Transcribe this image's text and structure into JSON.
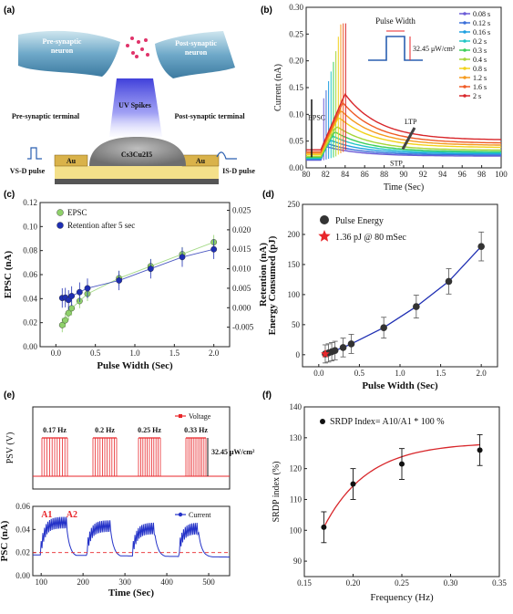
{
  "panels": {
    "a": {
      "label": "(a)",
      "pre_neuron": "Pre-synaptic neuron",
      "post_neuron": "Post-synaptic neuron",
      "uv": "UV Spikes",
      "pre_terminal": "Pre-synaptic terminal",
      "post_terminal": "Post-synaptic terminal",
      "au_left": "Au",
      "au_right": "Au",
      "material": "Cs3Cu2I5",
      "vsd": "VS-D pulse",
      "isd": "IS-D pulse"
    },
    "b": {
      "label": "(b)",
      "pulse_width": "Pulse Width",
      "power": "32.45 μW/cm²",
      "epsc": "EPSC",
      "ltp": "LTP",
      "stp": "STP"
    },
    "c": {
      "label": "(c)"
    },
    "d": {
      "label": "(d)"
    },
    "e": {
      "label": "(e)",
      "power": "32.45 μW/cm²",
      "a1": "A1",
      "a2": "A2",
      "freq_labels": [
        "0.17 Hz",
        "0.2 Hz",
        "0.25 Hz",
        "0.33 Hz"
      ]
    },
    "f": {
      "label": "(f)"
    }
  },
  "chart_data": [
    {
      "id": "b",
      "type": "line",
      "xlabel": "Time (Sec)",
      "ylabel": "Current (nA)",
      "xlim": [
        80,
        100
      ],
      "ylim": [
        0,
        0.3
      ],
      "xticks": [
        80,
        82,
        84,
        86,
        88,
        90,
        92,
        94,
        96,
        98,
        100
      ],
      "yticks": [
        0.0,
        0.05,
        0.1,
        0.15,
        0.2,
        0.25,
        0.3
      ],
      "series": [
        {
          "name": "0.08 s",
          "color": "#6b5bd6",
          "peak": 0.04,
          "base": 0.022
        },
        {
          "name": "0.12 s",
          "color": "#3b6fd9",
          "peak": 0.045,
          "base": 0.024
        },
        {
          "name": "0.16 s",
          "color": "#1fa0e0",
          "peak": 0.052,
          "base": 0.026
        },
        {
          "name": "0.2 s",
          "color": "#22c6c6",
          "peak": 0.06,
          "base": 0.028
        },
        {
          "name": "0.3 s",
          "color": "#3ccf5a",
          "peak": 0.068,
          "base": 0.03
        },
        {
          "name": "0.4 s",
          "color": "#a6d63a",
          "peak": 0.078,
          "base": 0.033
        },
        {
          "name": "0.8 s",
          "color": "#f2d21a",
          "peak": 0.095,
          "base": 0.038
        },
        {
          "name": "1.2 s",
          "color": "#f59a1e",
          "peak": 0.108,
          "base": 0.042
        },
        {
          "name": "1.6 s",
          "color": "#ef5a26",
          "peak": 0.122,
          "base": 0.046
        },
        {
          "name": "2 s",
          "color": "#d8262a",
          "peak": 0.138,
          "base": 0.052
        }
      ]
    },
    {
      "id": "c",
      "type": "scatter",
      "xlabel": "Pulse Width (Sec)",
      "ylabel": "EPSC (nA)",
      "y2label": "Retention (nA)",
      "xlim": [
        -0.2,
        2.2
      ],
      "ylim": [
        0.0,
        0.12
      ],
      "y2lim": [
        -0.01,
        0.027
      ],
      "xticks": [
        0.0,
        0.5,
        1.0,
        1.5,
        2.0
      ],
      "yticks": [
        0.0,
        0.02,
        0.04,
        0.06,
        0.08,
        0.1,
        0.12
      ],
      "y2ticks": [
        -0.005,
        0.0,
        0.005,
        0.01,
        0.015,
        0.02,
        0.025
      ],
      "x": [
        0.08,
        0.12,
        0.16,
        0.2,
        0.3,
        0.4,
        0.8,
        1.2,
        1.6,
        2.0
      ],
      "series": [
        {
          "name": "EPSC",
          "color": "#8fd16a",
          "values": [
            0.018,
            0.022,
            0.028,
            0.032,
            0.038,
            0.044,
            0.057,
            0.067,
            0.077,
            0.087
          ]
        },
        {
          "name": "Retention after 5 sec",
          "color": "#1f2fb3",
          "values": [
            0.0025,
            0.0026,
            0.002,
            0.003,
            0.004,
            0.005,
            0.007,
            0.01,
            0.013,
            0.015
          ]
        }
      ]
    },
    {
      "id": "d",
      "type": "scatter",
      "xlabel": "Pulse Width (Sec)",
      "ylabel": "Energy Consumed (pJ)",
      "xlim": [
        -0.2,
        2.2
      ],
      "ylim": [
        -20,
        250
      ],
      "xticks": [
        0.0,
        0.5,
        1.0,
        1.5,
        2.0
      ],
      "yticks": [
        0,
        50,
        100,
        150,
        200,
        250
      ],
      "x": [
        0.08,
        0.12,
        0.16,
        0.2,
        0.3,
        0.4,
        0.8,
        1.2,
        1.6,
        2.0
      ],
      "series": [
        {
          "name": "Pulse Energy",
          "color": "#333",
          "values": [
            1.36,
            3,
            5,
            7,
            12,
            18,
            45,
            80,
            122,
            180
          ]
        },
        {
          "name": "1.36 pJ @ 80 mSec",
          "color": "#e8262a",
          "values": [
            1.36
          ]
        }
      ]
    },
    {
      "id": "e-top",
      "type": "line",
      "ylabel": "PSV (V)",
      "series": [
        {
          "name": "Voltage",
          "color": "#e8262a"
        }
      ]
    },
    {
      "id": "e-bottom",
      "type": "line",
      "xlabel": "Time (Sec)",
      "ylabel": "PSC (nA)",
      "xlim": [
        80,
        550
      ],
      "ylim": [
        0,
        0.06
      ],
      "xticks": [
        100,
        200,
        300,
        400,
        500
      ],
      "yticks": [
        0.0,
        0.02,
        0.04,
        0.06
      ],
      "series": [
        {
          "name": "Current",
          "color": "#2432c8"
        }
      ]
    },
    {
      "id": "f",
      "type": "scatter",
      "xlabel": "Frequency (Hz)",
      "ylabel": "SRDP index (%)",
      "xlim": [
        0.15,
        0.35
      ],
      "ylim": [
        85,
        140
      ],
      "xticks": [
        0.15,
        0.2,
        0.25,
        0.3,
        0.35
      ],
      "yticks": [
        90,
        100,
        110,
        120,
        130,
        140
      ],
      "x": [
        0.17,
        0.2,
        0.25,
        0.33
      ],
      "values": [
        101,
        115,
        121.5,
        126
      ],
      "errors": [
        5,
        5,
        5,
        5
      ],
      "series": [
        {
          "name": "SRDP Index= A10/A1 * 100 %",
          "color": "#111"
        }
      ]
    }
  ]
}
